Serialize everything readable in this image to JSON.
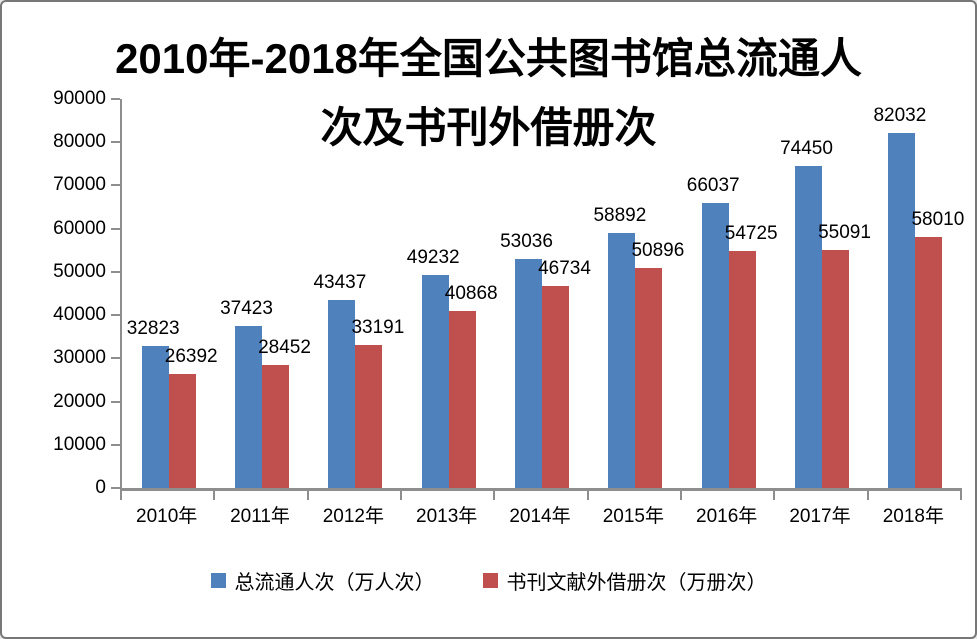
{
  "chart_data": {
    "type": "bar",
    "title": "2010年-2018年全国公共图书馆总流通人次及书刊外借册次",
    "title_lines": [
      "2010年-2018年全国公共图书馆总流通人",
      "次及书刊外借册次"
    ],
    "categories": [
      "2010年",
      "2011年",
      "2012年",
      "2013年",
      "2014年",
      "2015年",
      "2016年",
      "2017年",
      "2018年"
    ],
    "series": [
      {
        "name": "总流通人次（万人次）",
        "color": "#4F81BD",
        "values": [
          32823,
          37423,
          43437,
          49232,
          53036,
          58892,
          66037,
          74450,
          82032
        ]
      },
      {
        "name": "书刊文献外借册次（万册次）",
        "color": "#C0504D",
        "values": [
          26392,
          28452,
          33191,
          40868,
          46734,
          50896,
          54725,
          55091,
          58010
        ]
      }
    ],
    "ylim": [
      0,
      90000
    ],
    "ytick_interval": 10000,
    "ytick_labels": [
      "0",
      "10000",
      "20000",
      "30000",
      "40000",
      "50000",
      "60000",
      "70000",
      "80000",
      "90000"
    ],
    "grid": false,
    "data_labels": "outside-end",
    "legend_position": "bottom",
    "axis_color": "#8E8E8E",
    "text_color": "#000000",
    "background_color": "#FFFFFF"
  }
}
